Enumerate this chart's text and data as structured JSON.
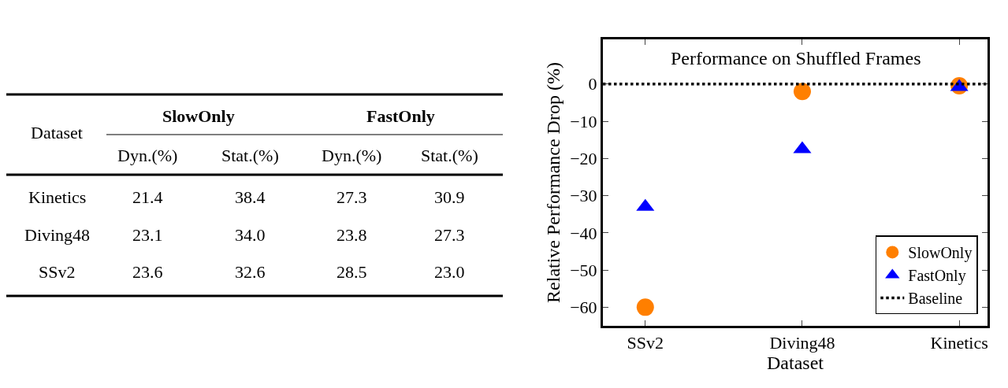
{
  "chart_data": [
    {
      "type": "other",
      "xlabel": "Dataset",
      "annotations": [
        "SlowOnly",
        "FastOnly"
      ],
      "categories": [
        "Kinetics",
        "Diving48",
        "SSv2"
      ],
      "series": [
        {
          "name": "Dyn.(%)",
          "values": [
            21.4,
            23.1,
            23.6
          ],
          "value_labels": [
            "21.4",
            "23.1",
            "23.6"
          ]
        },
        {
          "name": "Stat.(%)",
          "values": [
            38.4,
            34.0,
            32.6
          ],
          "value_labels": [
            "38.4",
            "34.0",
            "32.6"
          ]
        },
        {
          "name": "Dyn.(%)",
          "values": [
            27.3,
            23.8,
            28.5
          ],
          "value_labels": [
            "27.3",
            "23.8",
            "28.5"
          ]
        },
        {
          "name": "Stat.(%)",
          "values": [
            30.9,
            27.3,
            23.0
          ],
          "value_labels": [
            "30.9",
            "27.3",
            "23.0"
          ]
        }
      ]
    },
    {
      "type": "scatter",
      "title": "Performance on Shuffled Frames",
      "xlabel": "Dataset",
      "ylabel": "Relative Performance Drop (%)",
      "categories": [
        "SSv2",
        "Diving48",
        "Kinetics"
      ],
      "series": [
        {
          "name": "SlowOnly",
          "color": "#ff7f00",
          "marker": "circle",
          "values": [
            -60,
            -2,
            -0.5
          ]
        },
        {
          "name": "FastOnly",
          "color": "#0000ff",
          "marker": "triangle",
          "values": [
            -33,
            -17.5,
            -0.8
          ]
        }
      ],
      "ylim": [
        -65,
        12
      ],
      "yticks": [
        0,
        -10,
        -20,
        -30,
        -40,
        -50,
        -60
      ],
      "ref_lines": [
        {
          "axis": "y",
          "value": 0,
          "label": "Baseline",
          "color": "#000000",
          "line_style": "dotted"
        }
      ],
      "legend": "bottom right"
    }
  ]
}
